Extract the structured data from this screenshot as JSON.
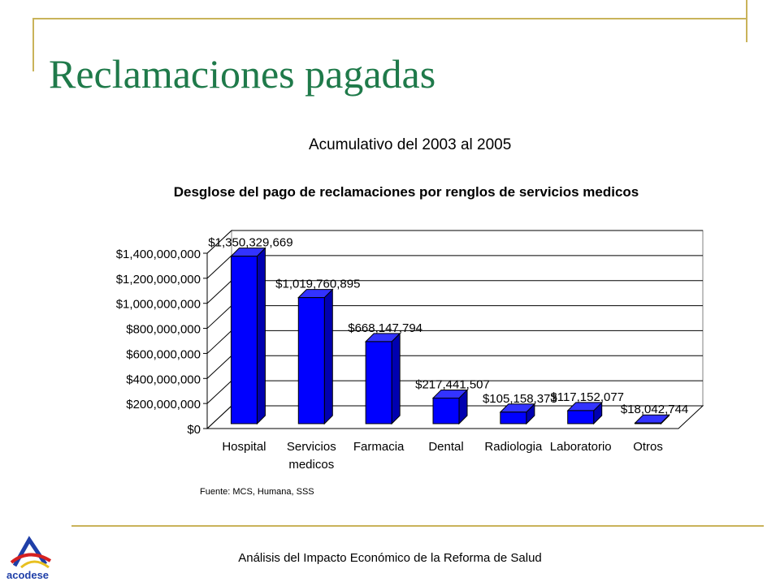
{
  "slide": {
    "title": "Reclamaciones pagadas",
    "subtitle": "Acumulativo del 2003 al 2005",
    "source": "Fuente: MCS, Humana,  SSS",
    "footer": "Análisis del Impacto Económico de la Reforma de Salud",
    "logo_text": "acodese",
    "accent_color": "#c9b35a",
    "title_color": "#1f7a4a"
  },
  "chart_data": {
    "type": "bar",
    "title": "Desglose del pago de reclamaciones por renglos de servicios medicos",
    "categories": [
      "Hospital",
      "Servicios medicos",
      "Farmacia",
      "Dental",
      "Radiologia",
      "Laboratorio",
      "Otros"
    ],
    "values": [
      1350329669,
      1019760895,
      668147794,
      217441507,
      105158373,
      117152077,
      18042744
    ],
    "data_labels": [
      "$1,350,329,669",
      "$1,019,760,895",
      "$668,147,794",
      "$217,441,507",
      "$105,158,373",
      "$117,152,077",
      "$18,042,744"
    ],
    "yticks": [
      "$0",
      "$200,000,000",
      "$400,000,000",
      "$600,000,000",
      "$800,000,000",
      "$1,000,000,000",
      "$1,200,000,000",
      "$1,400,000,000"
    ],
    "ylim": [
      0,
      1400000000
    ],
    "grid": true,
    "bar_color": "#0000ff",
    "xlabel": "",
    "ylabel": ""
  }
}
